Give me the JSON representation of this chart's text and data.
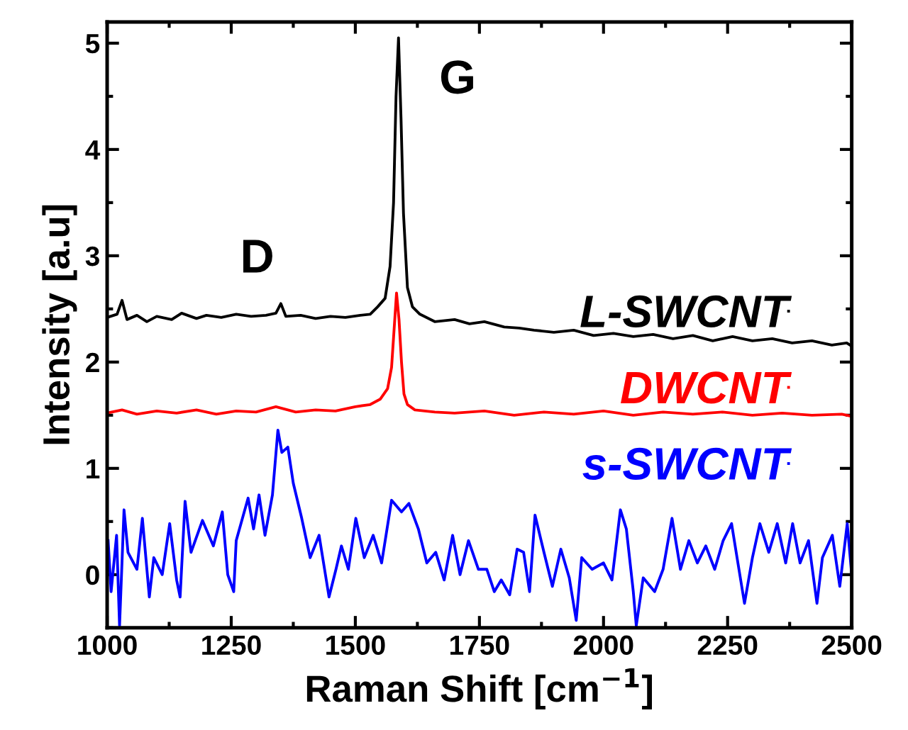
{
  "chart_data": {
    "type": "line",
    "xlabel": "Raman Shift [cm$^{−1}$]",
    "ylabel": "Intensity [a.u]",
    "xlim": [
      1000,
      2500
    ],
    "xticks": [
      1000,
      1250,
      1500,
      1750,
      2000,
      2250,
      2500
    ],
    "ylim": [
      -0.5,
      5.2
    ],
    "yticks": [
      0,
      1,
      2,
      3,
      4,
      5
    ],
    "grid": false,
    "legend": "right",
    "marker": "none",
    "line_style": "solid",
    "annotations": [
      {
        "text": "D",
        "x": 1350,
        "y": 2.55
      },
      {
        "text": "G",
        "x": 1587,
        "y": 5.05
      }
    ],
    "series": [
      {
        "name": "L-SWCNT",
        "color": "#000000",
        "x": [
          1000,
          1020,
          1030,
          1040,
          1060,
          1080,
          1100,
          1130,
          1150,
          1180,
          1200,
          1230,
          1260,
          1290,
          1320,
          1340,
          1350,
          1360,
          1390,
          1420,
          1450,
          1480,
          1510,
          1530,
          1545,
          1560,
          1570,
          1577,
          1582,
          1587,
          1592,
          1597,
          1605,
          1615,
          1630,
          1660,
          1700,
          1730,
          1760,
          1800,
          1830,
          1860,
          1900,
          1940,
          1980,
          2020,
          2060,
          2100,
          2140,
          2180,
          2220,
          2260,
          2300,
          2340,
          2380,
          2420,
          2460,
          2490,
          2500
        ],
        "values": [
          2.42,
          2.45,
          2.58,
          2.4,
          2.44,
          2.38,
          2.43,
          2.4,
          2.46,
          2.41,
          2.44,
          2.42,
          2.45,
          2.43,
          2.44,
          2.46,
          2.55,
          2.43,
          2.44,
          2.41,
          2.43,
          2.42,
          2.44,
          2.45,
          2.52,
          2.6,
          2.9,
          3.5,
          4.5,
          5.05,
          4.3,
          3.4,
          2.7,
          2.52,
          2.45,
          2.38,
          2.4,
          2.36,
          2.38,
          2.33,
          2.32,
          2.3,
          2.28,
          2.3,
          2.25,
          2.27,
          2.24,
          2.26,
          2.22,
          2.25,
          2.2,
          2.24,
          2.2,
          2.22,
          2.18,
          2.2,
          2.16,
          2.18,
          2.15
        ]
      },
      {
        "name": "DWCNT",
        "color": "#ff0000",
        "x": [
          1000,
          1030,
          1060,
          1100,
          1140,
          1180,
          1220,
          1260,
          1300,
          1340,
          1380,
          1420,
          1460,
          1500,
          1530,
          1550,
          1565,
          1573,
          1578,
          1583,
          1588,
          1593,
          1598,
          1605,
          1620,
          1660,
          1700,
          1760,
          1820,
          1880,
          1940,
          2000,
          2060,
          2120,
          2180,
          2240,
          2300,
          2360,
          2420,
          2480,
          2500
        ],
        "values": [
          1.52,
          1.55,
          1.51,
          1.54,
          1.52,
          1.55,
          1.51,
          1.54,
          1.53,
          1.58,
          1.53,
          1.55,
          1.54,
          1.58,
          1.6,
          1.65,
          1.75,
          1.95,
          2.3,
          2.65,
          2.4,
          2.0,
          1.7,
          1.6,
          1.55,
          1.53,
          1.52,
          1.54,
          1.5,
          1.53,
          1.51,
          1.54,
          1.5,
          1.53,
          1.51,
          1.53,
          1.5,
          1.52,
          1.5,
          1.51,
          1.49
        ]
      },
      {
        "name": "s-SWCNT",
        "color": "#0000ff",
        "x": [
          1002,
          1008,
          1019,
          1025,
          1034,
          1042,
          1060,
          1071,
          1085,
          1094,
          1111,
          1126,
          1140,
          1147,
          1157,
          1169,
          1192,
          1214,
          1232,
          1243,
          1255,
          1260,
          1284,
          1295,
          1306,
          1318,
          1333,
          1344,
          1352,
          1364,
          1375,
          1392,
          1409,
          1427,
          1447,
          1461,
          1472,
          1486,
          1501,
          1518,
          1536,
          1553,
          1573,
          1593,
          1608,
          1627,
          1644,
          1662,
          1679,
          1696,
          1711,
          1728,
          1748,
          1765,
          1780,
          1794,
          1811,
          1826,
          1839,
          1851,
          1862,
          1880,
          1897,
          1914,
          1931,
          1945,
          1956,
          1977,
          2000,
          2017,
          2034,
          2046,
          2060,
          2066,
          2080,
          2103,
          2120,
          2138,
          2155,
          2172,
          2189,
          2206,
          2224,
          2241,
          2258,
          2269,
          2284,
          2300,
          2315,
          2333,
          2350,
          2367,
          2381,
          2396,
          2413,
          2430,
          2441,
          2461,
          2476,
          2491,
          2500
        ],
        "values": [
          0.32,
          -0.16,
          0.37,
          -0.48,
          0.61,
          0.21,
          0.05,
          0.53,
          -0.21,
          0.16,
          0.0,
          0.48,
          -0.05,
          -0.21,
          0.69,
          0.21,
          0.51,
          0.27,
          0.59,
          0.0,
          -0.16,
          0.32,
          0.72,
          0.43,
          0.75,
          0.37,
          0.75,
          1.36,
          1.15,
          1.2,
          0.86,
          0.53,
          0.16,
          0.37,
          -0.21,
          0.05,
          0.27,
          0.05,
          0.53,
          0.16,
          0.37,
          0.11,
          0.7,
          0.59,
          0.67,
          0.43,
          0.11,
          0.21,
          -0.05,
          0.37,
          0.0,
          0.32,
          0.05,
          0.05,
          -0.16,
          -0.05,
          -0.19,
          0.24,
          0.21,
          -0.16,
          0.56,
          0.21,
          -0.11,
          0.24,
          -0.03,
          -0.43,
          0.16,
          0.05,
          0.11,
          -0.05,
          0.61,
          0.43,
          -0.16,
          -0.48,
          -0.03,
          -0.16,
          0.05,
          0.53,
          0.05,
          0.32,
          0.11,
          0.27,
          0.05,
          0.32,
          0.48,
          0.16,
          -0.27,
          0.16,
          0.48,
          0.21,
          0.48,
          0.11,
          0.48,
          0.11,
          0.32,
          -0.27,
          0.16,
          0.37,
          -0.11,
          0.48,
          0.0
        ]
      }
    ]
  }
}
